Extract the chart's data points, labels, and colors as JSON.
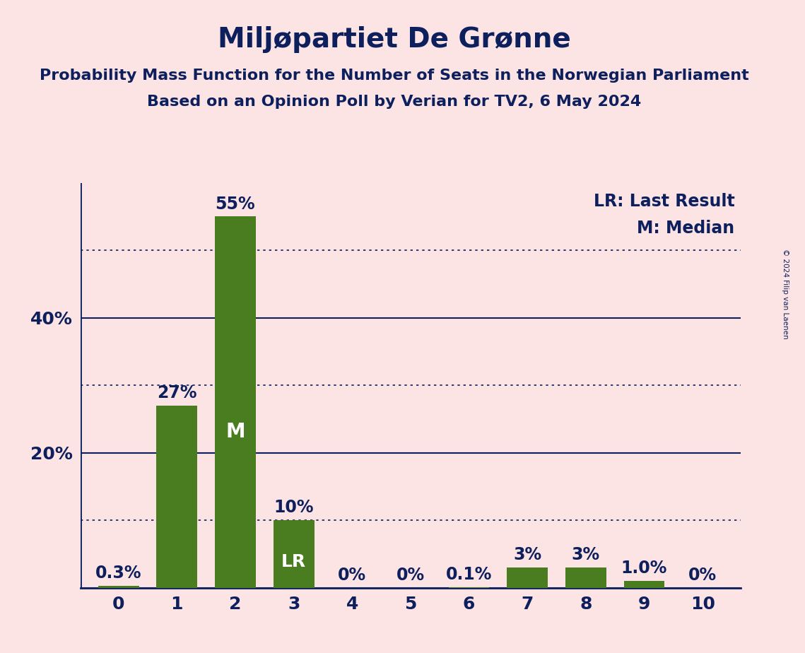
{
  "title": "Miljøpartiet De Grønne",
  "subtitle1": "Probability Mass Function for the Number of Seats in the Norwegian Parliament",
  "subtitle2": "Based on an Opinion Poll by Verian for TV2, 6 May 2024",
  "copyright": "© 2024 Filip van Laenen",
  "categories": [
    0,
    1,
    2,
    3,
    4,
    5,
    6,
    7,
    8,
    9,
    10
  ],
  "values": [
    0.3,
    27,
    55,
    10,
    0,
    0,
    0.1,
    3,
    3,
    1.0,
    0
  ],
  "bar_color": "#4a7c20",
  "background_color": "#fce4e4",
  "text_color": "#0d1f5c",
  "bar_labels": [
    "0.3%",
    "27%",
    "55%",
    "10%",
    "0%",
    "0%",
    "0.1%",
    "3%",
    "3%",
    "1.0%",
    "0%"
  ],
  "median_bar": 2,
  "last_result_bar": 3,
  "legend_lr": "LR: Last Result",
  "legend_m": "M: Median",
  "ylim": [
    0,
    60
  ],
  "solid_yticks": [
    0,
    20,
    40
  ],
  "dotted_yticks": [
    10,
    30,
    50
  ],
  "title_fontsize": 28,
  "subtitle_fontsize": 16,
  "axis_label_fontsize": 18,
  "bar_label_fontsize": 17,
  "legend_fontsize": 17,
  "inline_label_fontsize": 20
}
